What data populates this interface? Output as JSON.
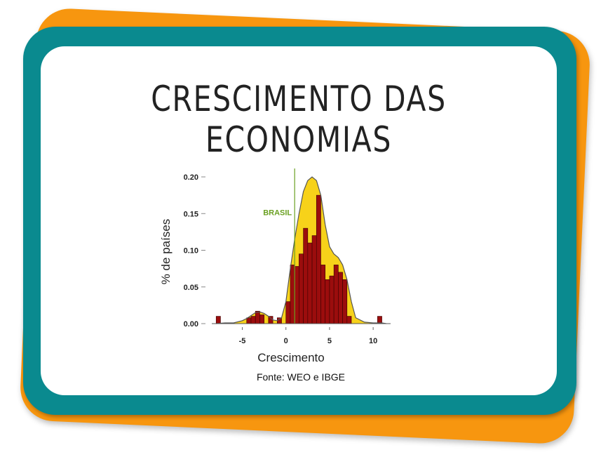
{
  "title": "CRESCIMENTO DAS ECONOMIAS",
  "source": "Fonte: WEO e IBGE",
  "colors": {
    "back_card": "#f7960f",
    "front_card": "#0a8a8f",
    "density_fill": "#f7d21a",
    "bar_fill": "#9b0d0d",
    "brasil_line": "#6aa022"
  },
  "chart_data": {
    "type": "bar",
    "xlabel": "Crescimento",
    "ylabel": "% de países",
    "xlim": [
      -8.5,
      12
    ],
    "ylim": [
      0,
      0.2
    ],
    "xticks": [
      -5,
      0,
      5,
      10
    ],
    "yticks": [
      0,
      0.05,
      0.1,
      0.15,
      0.2
    ],
    "xtick_labels": [
      "-5",
      "0",
      "5",
      "10"
    ],
    "ytick_labels": [
      "0.00",
      "0.05",
      "0.10",
      "0.15",
      "0.20"
    ],
    "histogram": {
      "bin_width": 0.5,
      "bins": [
        {
          "x": -7.75,
          "y": 0.01
        },
        {
          "x": -4.25,
          "y": 0.008
        },
        {
          "x": -3.75,
          "y": 0.01
        },
        {
          "x": -3.25,
          "y": 0.017
        },
        {
          "x": -2.75,
          "y": 0.012
        },
        {
          "x": -1.75,
          "y": 0.01
        },
        {
          "x": -0.75,
          "y": 0.008
        },
        {
          "x": 0.25,
          "y": 0.03
        },
        {
          "x": 0.75,
          "y": 0.08
        },
        {
          "x": 1.25,
          "y": 0.078
        },
        {
          "x": 1.75,
          "y": 0.095
        },
        {
          "x": 2.25,
          "y": 0.13
        },
        {
          "x": 2.75,
          "y": 0.11
        },
        {
          "x": 3.25,
          "y": 0.12
        },
        {
          "x": 3.75,
          "y": 0.175
        },
        {
          "x": 4.25,
          "y": 0.08
        },
        {
          "x": 4.75,
          "y": 0.06
        },
        {
          "x": 5.25,
          "y": 0.065
        },
        {
          "x": 5.75,
          "y": 0.08
        },
        {
          "x": 6.25,
          "y": 0.07
        },
        {
          "x": 6.75,
          "y": 0.06
        },
        {
          "x": 7.25,
          "y": 0.01
        },
        {
          "x": 10.75,
          "y": 0.01
        }
      ]
    },
    "density": {
      "x": [
        -8,
        -7,
        -6,
        -5,
        -4.5,
        -4,
        -3.5,
        -3,
        -2.5,
        -2,
        -1.5,
        -1,
        -0.5,
        0,
        0.5,
        1,
        1.5,
        2,
        2.5,
        3,
        3.5,
        4,
        4.5,
        5,
        5.5,
        6,
        6.5,
        7,
        7.5,
        8,
        9,
        10,
        11,
        11.5
      ],
      "y": [
        0,
        0.001,
        0.001,
        0.004,
        0.007,
        0.011,
        0.015,
        0.016,
        0.014,
        0.01,
        0.005,
        0.004,
        0.008,
        0.03,
        0.075,
        0.115,
        0.15,
        0.18,
        0.195,
        0.2,
        0.195,
        0.175,
        0.135,
        0.105,
        0.095,
        0.09,
        0.08,
        0.06,
        0.03,
        0.008,
        0.002,
        0.001,
        0.001,
        0
      ]
    },
    "reference_line": {
      "x": 1,
      "label": "BRASIL"
    }
  }
}
